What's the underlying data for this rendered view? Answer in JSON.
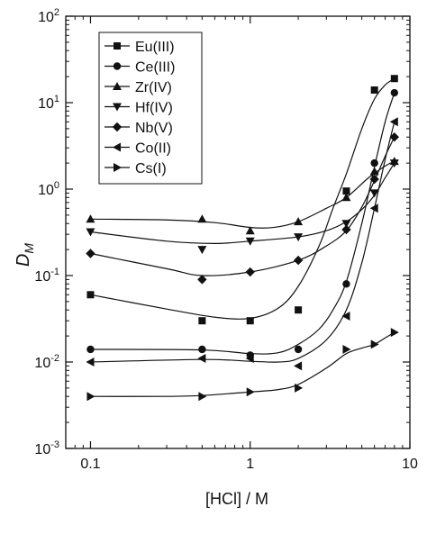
{
  "chart_data": {
    "type": "scatter",
    "xlabel": "[HCl] / M",
    "ylabel_main": "D",
    "ylabel_sub": "M",
    "xscale": "log",
    "yscale": "log",
    "xlim": [
      0.07,
      10
    ],
    "ylim": [
      0.001,
      100
    ],
    "grid": false,
    "legend_position": "top-left",
    "x_ticks": [
      {
        "value": 0.1,
        "label": "0.1"
      },
      {
        "value": 1,
        "label": "1"
      },
      {
        "value": 10,
        "label": "10"
      }
    ],
    "y_ticks": [
      {
        "value": 0.001,
        "base": "10",
        "exp": "-3"
      },
      {
        "value": 0.01,
        "base": "10",
        "exp": "-2"
      },
      {
        "value": 0.1,
        "base": "10",
        "exp": "-1"
      },
      {
        "value": 1,
        "base": "10",
        "exp": "0"
      },
      {
        "value": 10,
        "base": "10",
        "exp": "1"
      },
      {
        "value": 100,
        "base": "10",
        "exp": "2"
      }
    ],
    "series": [
      {
        "name": "Eu(III)",
        "marker": "square",
        "x": [
          0.1,
          0.5,
          1,
          2,
          4,
          6,
          8
        ],
        "y": [
          0.06,
          0.03,
          0.03,
          0.04,
          0.95,
          14,
          19
        ],
        "curve": [
          [
            0.1,
            0.06
          ],
          [
            0.3,
            0.041
          ],
          [
            0.6,
            0.033
          ],
          [
            1,
            0.032
          ],
          [
            1.5,
            0.042
          ],
          [
            2,
            0.075
          ],
          [
            2.7,
            0.22
          ],
          [
            3.3,
            0.6
          ],
          [
            4,
            1.5
          ],
          [
            5,
            5
          ],
          [
            6,
            11
          ],
          [
            7,
            16
          ],
          [
            8,
            19
          ]
        ]
      },
      {
        "name": "Ce(III)",
        "marker": "circle",
        "x": [
          0.1,
          0.5,
          1,
          2,
          4,
          6,
          8
        ],
        "y": [
          0.014,
          0.014,
          0.012,
          0.014,
          0.08,
          2,
          13
        ],
        "curve": [
          [
            0.1,
            0.014
          ],
          [
            0.5,
            0.0138
          ],
          [
            1,
            0.0125
          ],
          [
            1.5,
            0.0128
          ],
          [
            2,
            0.016
          ],
          [
            2.7,
            0.024
          ],
          [
            3.3,
            0.04
          ],
          [
            4,
            0.085
          ],
          [
            5,
            0.4
          ],
          [
            6,
            1.8
          ],
          [
            7,
            6
          ],
          [
            8,
            13
          ]
        ]
      },
      {
        "name": "Zr(IV)",
        "marker": "triangle-up",
        "x": [
          0.1,
          0.5,
          1,
          2,
          4,
          6,
          8
        ],
        "y": [
          0.45,
          0.45,
          0.33,
          0.42,
          0.8,
          1.6,
          2.1
        ],
        "curve": [
          [
            0.1,
            0.45
          ],
          [
            0.3,
            0.44
          ],
          [
            0.6,
            0.41
          ],
          [
            1,
            0.36
          ],
          [
            1.4,
            0.36
          ],
          [
            2,
            0.42
          ],
          [
            3,
            0.6
          ],
          [
            4,
            0.8
          ],
          [
            5.5,
            1.35
          ],
          [
            7,
            1.85
          ],
          [
            8,
            2.1
          ]
        ]
      },
      {
        "name": "Hf(IV)",
        "marker": "triangle-down",
        "x": [
          0.1,
          0.5,
          1,
          2,
          4,
          6,
          8
        ],
        "y": [
          0.32,
          0.2,
          0.25,
          0.28,
          0.4,
          0.9,
          2
        ],
        "curve": [
          [
            0.1,
            0.32
          ],
          [
            0.3,
            0.25
          ],
          [
            0.6,
            0.235
          ],
          [
            1,
            0.25
          ],
          [
            2,
            0.28
          ],
          [
            3,
            0.33
          ],
          [
            4,
            0.42
          ],
          [
            5,
            0.58
          ],
          [
            6,
            0.85
          ],
          [
            7,
            1.35
          ],
          [
            8,
            2
          ]
        ]
      },
      {
        "name": "Nb(V)",
        "marker": "diamond",
        "x": [
          0.1,
          0.5,
          1,
          2,
          4,
          6,
          8
        ],
        "y": [
          0.18,
          0.09,
          0.11,
          0.15,
          0.34,
          1.3,
          4
        ],
        "curve": [
          [
            0.1,
            0.18
          ],
          [
            0.3,
            0.12
          ],
          [
            0.5,
            0.1
          ],
          [
            1,
            0.11
          ],
          [
            2,
            0.15
          ],
          [
            3,
            0.22
          ],
          [
            4,
            0.33
          ],
          [
            5,
            0.62
          ],
          [
            6,
            1.25
          ],
          [
            7,
            2.4
          ],
          [
            8,
            4
          ]
        ]
      },
      {
        "name": "Co(II)",
        "marker": "triangle-left",
        "x": [
          0.1,
          0.5,
          1,
          2,
          4,
          6,
          8
        ],
        "y": [
          0.01,
          0.011,
          0.011,
          0.009,
          0.034,
          0.6,
          6
        ],
        "curve": [
          [
            0.1,
            0.01
          ],
          [
            0.5,
            0.0107
          ],
          [
            1,
            0.0102
          ],
          [
            1.5,
            0.01
          ],
          [
            2,
            0.011
          ],
          [
            3,
            0.018
          ],
          [
            4,
            0.04
          ],
          [
            5,
            0.14
          ],
          [
            6,
            0.6
          ],
          [
            7,
            2.2
          ],
          [
            8,
            6
          ]
        ]
      },
      {
        "name": "Cs(I)",
        "marker": "triangle-right",
        "x": [
          0.1,
          0.5,
          1,
          2,
          4,
          6,
          8
        ],
        "y": [
          0.004,
          0.004,
          0.0045,
          0.005,
          0.014,
          0.016,
          0.022
        ],
        "curve": [
          [
            0.1,
            0.004
          ],
          [
            0.3,
            0.004
          ],
          [
            0.5,
            0.0041
          ],
          [
            1,
            0.0045
          ],
          [
            1.5,
            0.0048
          ],
          [
            2,
            0.0055
          ],
          [
            3,
            0.0085
          ],
          [
            4,
            0.0125
          ],
          [
            5,
            0.0145
          ],
          [
            6,
            0.016
          ],
          [
            7,
            0.019
          ],
          [
            8,
            0.022
          ]
        ]
      }
    ]
  }
}
